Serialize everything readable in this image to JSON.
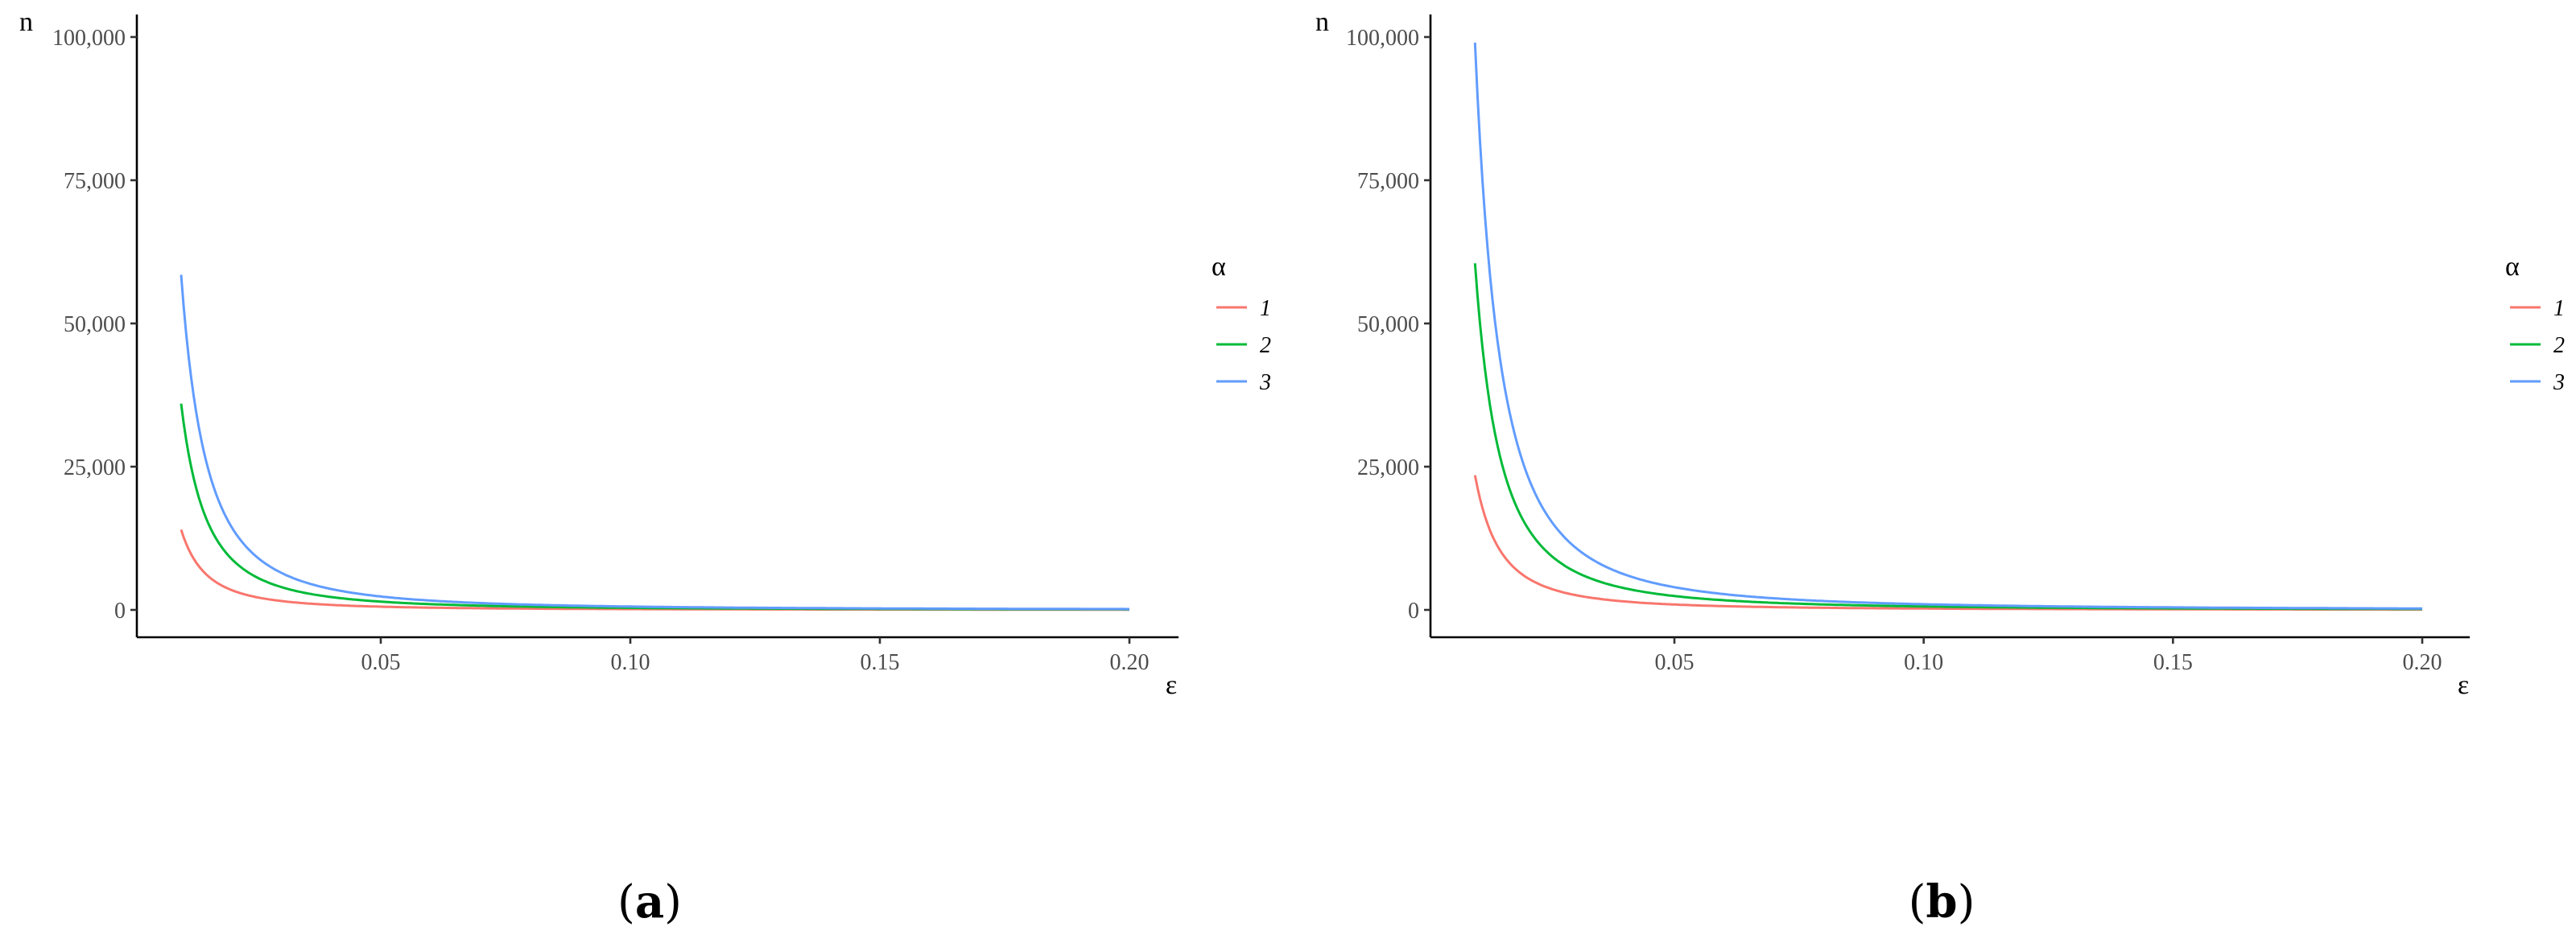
{
  "chart_data": [
    {
      "type": "line",
      "panel_label": "a",
      "xlabel": "ε",
      "ylabel": "n",
      "xlim": [
        0.0,
        0.205
      ],
      "ylim": [
        0,
        104000
      ],
      "x_ticks": [
        0.05,
        0.1,
        0.15,
        0.2
      ],
      "x_tick_labels": [
        "0.05",
        "0.10",
        "0.15",
        "0.20"
      ],
      "y_ticks": [
        0,
        25000,
        50000,
        75000,
        100000
      ],
      "y_tick_labels": [
        "0",
        "25,000",
        "50,000",
        "75,000",
        "100,000"
      ],
      "grid": false,
      "legend": {
        "title": "α",
        "position": "right"
      },
      "series": [
        {
          "name": "1",
          "color": "#F8766D",
          "x": [
            0.01,
            0.0125,
            0.015,
            0.02,
            0.025,
            0.03,
            0.04,
            0.05,
            0.06,
            0.08,
            0.1,
            0.15,
            0.2
          ],
          "y": [
            14000,
            8960,
            6220,
            3500,
            2240,
            1560,
            875,
            560,
            390,
            220,
            140,
            62,
            35
          ]
        },
        {
          "name": "2",
          "color": "#00BA38",
          "x": [
            0.01,
            0.0125,
            0.015,
            0.02,
            0.025,
            0.03,
            0.04,
            0.05,
            0.06,
            0.08,
            0.1,
            0.15,
            0.2
          ],
          "y": [
            36000,
            23040,
            16000,
            9000,
            5760,
            4000,
            2250,
            1440,
            1000,
            560,
            360,
            160,
            90
          ]
        },
        {
          "name": "3",
          "color": "#619CFF",
          "x": [
            0.01,
            0.0125,
            0.015,
            0.02,
            0.025,
            0.03,
            0.04,
            0.05,
            0.06,
            0.08,
            0.1,
            0.15,
            0.2
          ],
          "y": [
            58500,
            37440,
            26000,
            14625,
            9360,
            6500,
            3660,
            2340,
            1625,
            915,
            585,
            260,
            146
          ]
        }
      ]
    },
    {
      "type": "line",
      "panel_label": "b",
      "xlabel": "ε",
      "ylabel": "n",
      "xlim": [
        0.0,
        0.205
      ],
      "ylim": [
        0,
        104000
      ],
      "x_ticks": [
        0.05,
        0.1,
        0.15,
        0.2
      ],
      "x_tick_labels": [
        "0.05",
        "0.10",
        "0.15",
        "0.20"
      ],
      "y_ticks": [
        0,
        25000,
        50000,
        75000,
        100000
      ],
      "y_tick_labels": [
        "0",
        "25,000",
        "50,000",
        "75,000",
        "100,000"
      ],
      "grid": false,
      "legend": {
        "title": "α",
        "position": "right"
      },
      "series": [
        {
          "name": "1",
          "color": "#F8766D",
          "x": [
            0.01,
            0.0125,
            0.015,
            0.02,
            0.025,
            0.03,
            0.04,
            0.05,
            0.06,
            0.08,
            0.1,
            0.15,
            0.2
          ],
          "y": [
            23500,
            15040,
            10440,
            5875,
            3760,
            2610,
            1470,
            940,
            650,
            367,
            235,
            104,
            59
          ]
        },
        {
          "name": "2",
          "color": "#00BA38",
          "x": [
            0.01,
            0.0125,
            0.015,
            0.02,
            0.025,
            0.03,
            0.04,
            0.05,
            0.06,
            0.08,
            0.1,
            0.15,
            0.2
          ],
          "y": [
            60500,
            38720,
            26890,
            15125,
            9680,
            6720,
            3780,
            2420,
            1680,
            945,
            605,
            269,
            151
          ]
        },
        {
          "name": "3",
          "color": "#619CFF",
          "x": [
            0.01,
            0.0125,
            0.015,
            0.02,
            0.025,
            0.03,
            0.04,
            0.05,
            0.06,
            0.08,
            0.1,
            0.15,
            0.2
          ],
          "y": [
            99000,
            63360,
            44000,
            24750,
            15840,
            11000,
            6190,
            3960,
            2750,
            1547,
            990,
            440,
            248
          ]
        }
      ]
    }
  ]
}
